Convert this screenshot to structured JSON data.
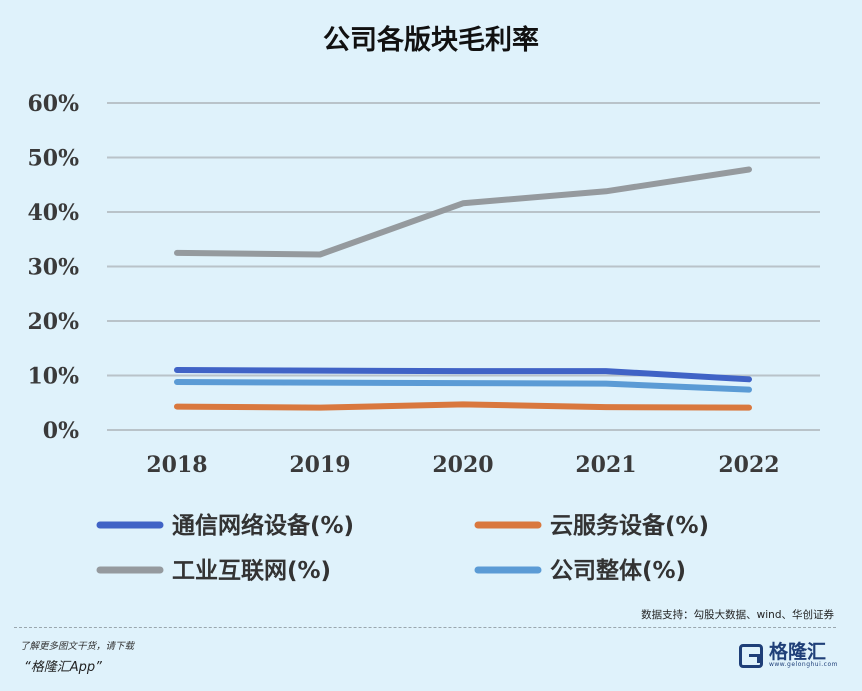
{
  "chart_data": {
    "type": "line",
    "title": "公司各版块毛利率",
    "categories": [
      "2018",
      "2019",
      "2020",
      "2021",
      "2022"
    ],
    "ylim": [
      0,
      60
    ],
    "yticks": [
      "0%",
      "10%",
      "20%",
      "30%",
      "40%",
      "50%",
      "60%"
    ],
    "grid": true,
    "legend_position": "bottom",
    "series": [
      {
        "name": "通信网络设备(%)",
        "color": "#4063c6",
        "values": [
          11.0,
          10.9,
          10.8,
          10.8,
          9.3
        ]
      },
      {
        "name": "云服务设备(%)",
        "color": "#d9783e",
        "values": [
          4.3,
          4.1,
          4.7,
          4.2,
          4.1
        ]
      },
      {
        "name": "工业互联网(%)",
        "color": "#959a9e",
        "values": [
          32.5,
          32.2,
          41.6,
          43.8,
          47.8
        ]
      },
      {
        "name": "公司整体(%)",
        "color": "#5b9bd5",
        "values": [
          8.8,
          8.7,
          8.6,
          8.5,
          7.4
        ]
      }
    ]
  },
  "source": "数据支持：勾股大数据、wind、华创证券",
  "footer": {
    "promo": "了解更多图文干货，请下载",
    "app": "“格隆汇App”",
    "logo_name": "格隆汇",
    "logo_url": "www.gelonghui.com"
  }
}
